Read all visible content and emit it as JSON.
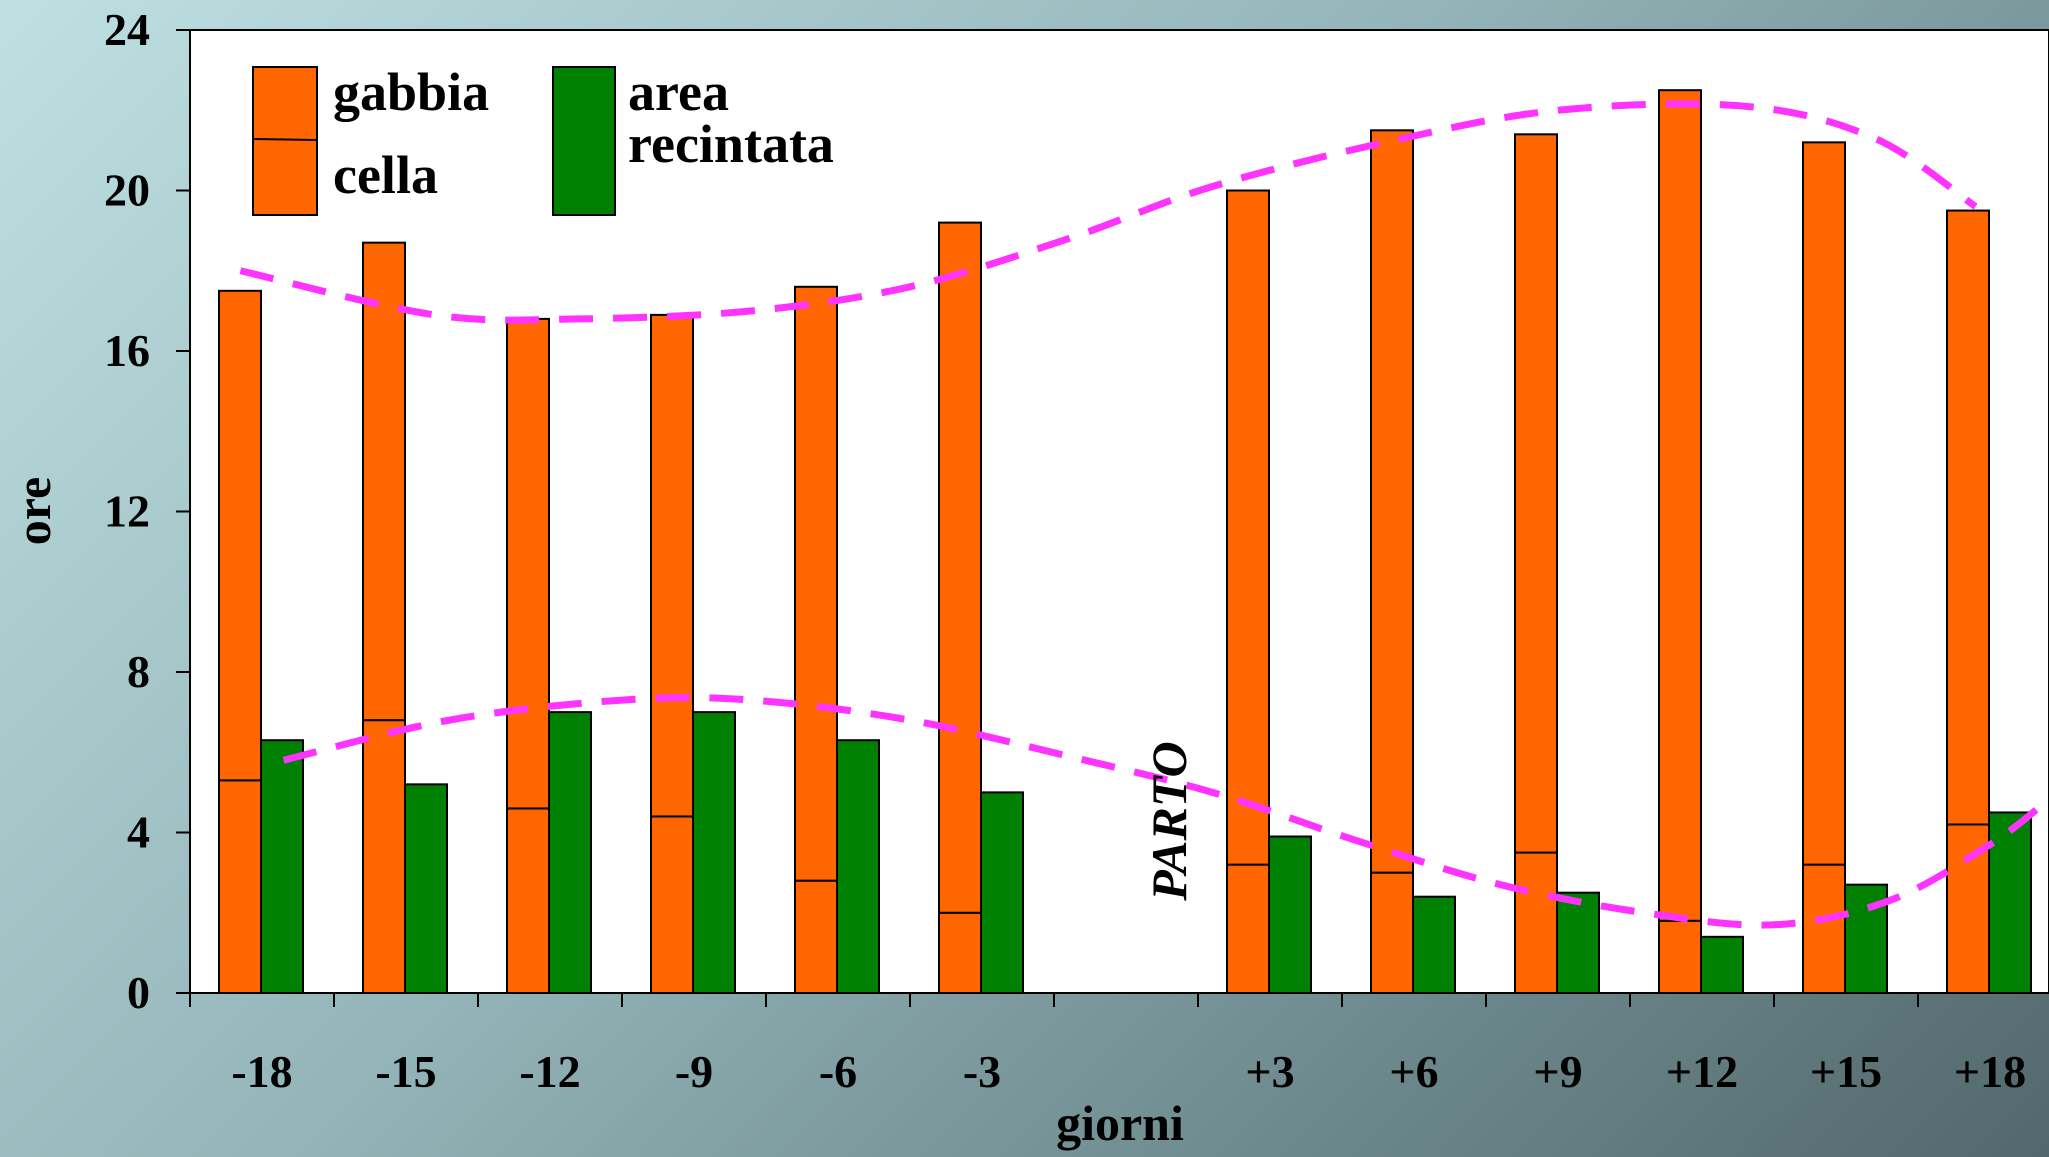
{
  "chart_data": {
    "type": "bar",
    "title": "",
    "xlabel": "giorni",
    "ylabel": "ore",
    "ylim": [
      0,
      24
    ],
    "yticks": [
      0,
      4,
      8,
      12,
      16,
      20,
      24
    ],
    "categories": [
      "-18",
      "-15",
      "-12",
      "-9",
      "-6",
      "-3",
      "",
      "+3",
      "+6",
      "+9",
      "+12",
      "+15",
      "+18"
    ],
    "stacked_first_series": true,
    "series": [
      {
        "name": "gabbia",
        "legend_label": "gabbia",
        "color": "#ff6600",
        "stack": "a",
        "values": [
          5.3,
          6.8,
          4.6,
          4.4,
          2.8,
          2.0,
          null,
          3.2,
          3.0,
          3.5,
          1.8,
          3.2,
          4.2
        ]
      },
      {
        "name": "cella",
        "legend_label": "cella",
        "color": "#ff6600",
        "stack": "a",
        "values": [
          12.2,
          11.9,
          12.2,
          12.5,
          14.8,
          17.2,
          null,
          16.8,
          18.5,
          17.9,
          20.7,
          18.0,
          15.3
        ]
      },
      {
        "name": "area recintata",
        "legend_label": [
          "area",
          "recintata"
        ],
        "color": "#008000",
        "stack": "b",
        "values": [
          6.3,
          5.2,
          7.0,
          7.0,
          6.3,
          5.0,
          null,
          3.9,
          2.4,
          2.5,
          1.4,
          2.7,
          4.5
        ]
      }
    ],
    "trendlines": [
      {
        "color": "#ff33ff",
        "style": "dashed",
        "points": [
          [
            -0.15,
            18.0
          ],
          [
            1.2,
            16.9
          ],
          [
            2.2,
            16.8
          ],
          [
            3.4,
            17.0
          ],
          [
            4.5,
            17.6
          ],
          [
            5.6,
            18.8
          ],
          [
            6.6,
            20.1
          ],
          [
            7.8,
            21.2
          ],
          [
            9.0,
            22.0
          ],
          [
            10.3,
            22.1
          ],
          [
            11.2,
            21.3
          ],
          [
            11.9,
            19.6
          ]
        ]
      },
      {
        "color": "#ff33ff",
        "style": "dashed",
        "points": [
          [
            0.15,
            5.8
          ],
          [
            1.3,
            6.8
          ],
          [
            2.5,
            7.3
          ],
          [
            3.4,
            7.3
          ],
          [
            4.5,
            6.8
          ],
          [
            5.6,
            5.9
          ],
          [
            6.6,
            5.0
          ],
          [
            7.6,
            3.8
          ],
          [
            8.6,
            2.7
          ],
          [
            9.6,
            2.0
          ],
          [
            10.5,
            1.7
          ],
          [
            11.3,
            2.3
          ],
          [
            12.0,
            3.7
          ],
          [
            12.4,
            4.8
          ]
        ]
      }
    ],
    "annotations": [
      {
        "text": "PARTO",
        "x_index": 6,
        "y": 2.3,
        "rotation": -90
      }
    ],
    "legend": {
      "position": "top-left",
      "items": [
        {
          "label": "gabbia",
          "color": "#ff6600"
        },
        {
          "label": "cella",
          "color": "#ff6600"
        },
        {
          "label": [
            "area",
            "recintata"
          ],
          "color": "#008000"
        }
      ]
    },
    "grid": false
  }
}
